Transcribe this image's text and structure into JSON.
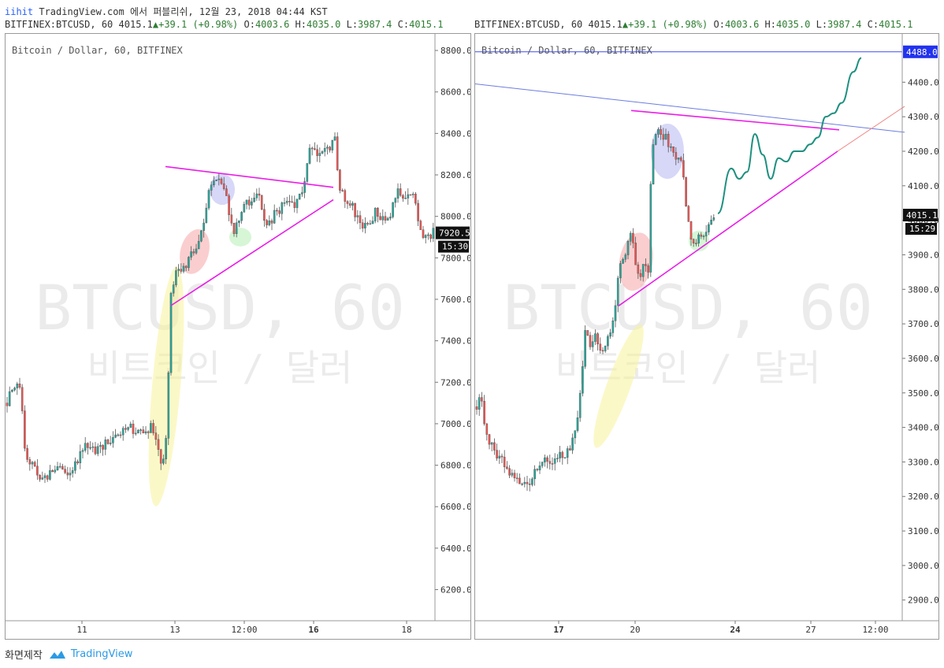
{
  "header": {
    "user": "iihit",
    "publish_text": "TradingView.com 에서 퍼블리쉬, 12월 23, 2018 04:44 KST"
  },
  "charts": [
    {
      "ohlc": {
        "symbol": "BITFINEX:BTCUSD, 60",
        "last": "4015.1",
        "change": "+39.1 (+0.98%)",
        "o_label": "O:",
        "o": "4003.6",
        "h_label": "H:",
        "h": "4035.0",
        "l_label": "L:",
        "l": "3987.4",
        "c_label": "C:",
        "c": "4015.1"
      },
      "title": "Bitcoin / Dollar, 60, BITFINEX",
      "watermark": "BTCUSD, 60",
      "watermark_sub": "비트코인 / 달러",
      "price_label": "7920.5",
      "time_label": "15:30",
      "hline_label": ""
    },
    {
      "ohlc": {
        "symbol": "BITFINEX:BTCUSD, 60",
        "last": "4015.1",
        "change": "+39.1 (+0.98%)",
        "o_label": "O:",
        "o": "4003.6",
        "h_label": "H:",
        "h": "4035.0",
        "l_label": "L:",
        "l": "3987.4",
        "c_label": "C:",
        "c": "4015.1"
      },
      "title": "Bitcoin / Dollar, 60, BITFINEX",
      "watermark": "BTCUSD, 60",
      "watermark_sub": "비트코인 / 달러",
      "price_label": "4015.1",
      "time_label": "15:29",
      "hline_label": "4488.0"
    }
  ],
  "footer": {
    "capture_label": "화면제작",
    "brand": "TradingView"
  },
  "colors": {
    "up": "#26a69a",
    "down": "#ef5350",
    "magenta": "#e91ee6",
    "blue_line": "#6c7ce0",
    "hline": "#3d4ff0",
    "projection": "#1e9080"
  },
  "chart_data": [
    {
      "type": "candlestick",
      "y_range": [
        6050,
        8880
      ],
      "y_ticks": [
        "8800.0",
        "8600.0",
        "8400.0",
        "8200.0",
        "8000.0",
        "7800.0",
        "7600.0",
        "7400.0",
        "7200.0",
        "7000.0",
        "6800.0",
        "6600.0",
        "6400.0",
        "6200.0"
      ],
      "x_ticks": [
        "11",
        "13",
        "12:00",
        "16",
        "18"
      ],
      "x_ticks_bold": [
        "16"
      ],
      "series_anchors": [
        [
          0,
          7100
        ],
        [
          5,
          7130
        ],
        [
          10,
          7160
        ],
        [
          14,
          7180
        ],
        [
          17,
          7180
        ],
        [
          20,
          7150
        ],
        [
          25,
          6850
        ],
        [
          35,
          6800
        ],
        [
          45,
          6720
        ],
        [
          55,
          6760
        ],
        [
          65,
          6800
        ],
        [
          75,
          6750
        ],
        [
          85,
          6790
        ],
        [
          95,
          6850
        ],
        [
          105,
          6900
        ],
        [
          115,
          6870
        ],
        [
          125,
          6900
        ],
        [
          135,
          6920
        ],
        [
          145,
          6950
        ],
        [
          155,
          6990
        ],
        [
          165,
          6960
        ],
        [
          175,
          6960
        ],
        [
          185,
          6990
        ],
        [
          192,
          6880
        ],
        [
          198,
          6800
        ],
        [
          204,
          6920
        ],
        [
          210,
          7650
        ],
        [
          220,
          7750
        ],
        [
          230,
          7780
        ],
        [
          240,
          7850
        ],
        [
          250,
          7920
        ],
        [
          258,
          8120
        ],
        [
          265,
          8150
        ],
        [
          272,
          8180
        ],
        [
          280,
          8100
        ],
        [
          288,
          7920
        ],
        [
          296,
          7960
        ],
        [
          304,
          8100
        ],
        [
          312,
          8050
        ],
        [
          320,
          8120
        ],
        [
          330,
          7960
        ],
        [
          340,
          8000
        ],
        [
          350,
          8050
        ],
        [
          360,
          8080
        ],
        [
          370,
          8060
        ],
        [
          378,
          8130
        ],
        [
          386,
          8320
        ],
        [
          394,
          8300
        ],
        [
          402,
          8330
        ],
        [
          410,
          8320
        ],
        [
          418,
          8360
        ],
        [
          424,
          8130
        ],
        [
          430,
          8080
        ],
        [
          440,
          8050
        ],
        [
          450,
          7950
        ],
        [
          460,
          7970
        ],
        [
          470,
          8020
        ],
        [
          480,
          7970
        ],
        [
          490,
          8030
        ],
        [
          496,
          8130
        ],
        [
          504,
          8100
        ],
        [
          512,
          8110
        ],
        [
          520,
          8070
        ],
        [
          526,
          7920
        ],
        [
          534,
          7890
        ],
        [
          545,
          7930
        ]
      ],
      "drawings": {
        "upper_trendline": [
          [
            203,
            8240
          ],
          [
            416,
            8140
          ]
        ],
        "lower_trendline": [
          [
            210,
            7570
          ],
          [
            416,
            8080
          ]
        ],
        "ellipses": [
          {
            "cx": 204,
            "cy": 7180,
            "rx": 18,
            "ry": 580,
            "rot": 5,
            "color": "#f8f29a"
          },
          {
            "cx": 240,
            "cy": 7830,
            "rx": 18,
            "ry": 110,
            "rot": 15,
            "color": "#f5a6a6"
          },
          {
            "cx": 275,
            "cy": 8130,
            "rx": 16,
            "ry": 75,
            "rot": 0,
            "color": "#b6b6f2"
          },
          {
            "cx": 298,
            "cy": 7900,
            "rx": 14,
            "ry": 45,
            "rot": 0,
            "color": "#b5efb5"
          }
        ]
      }
    },
    {
      "type": "candlestick",
      "y_range": [
        2840,
        4540
      ],
      "y_ticks": [
        "4400.0",
        "4300.0",
        "4200.0",
        "4100.0",
        "4000.0",
        "3900.0",
        "3800.0",
        "3700.0",
        "3600.0",
        "3500.0",
        "3400.0",
        "3300.0",
        "3200.0",
        "3100.0",
        "3000.0",
        "2900.0"
      ],
      "x_ticks": [
        "17",
        "20",
        "24",
        "27",
        "12:00"
      ],
      "x_ticks_bold": [
        "17",
        "24"
      ],
      "series_anchors": [
        [
          0,
          3460
        ],
        [
          8,
          3490
        ],
        [
          14,
          3380
        ],
        [
          22,
          3340
        ],
        [
          30,
          3320
        ],
        [
          40,
          3280
        ],
        [
          50,
          3250
        ],
        [
          60,
          3230
        ],
        [
          70,
          3250
        ],
        [
          80,
          3290
        ],
        [
          90,
          3320
        ],
        [
          100,
          3300
        ],
        [
          108,
          3320
        ],
        [
          116,
          3330
        ],
        [
          124,
          3360
        ],
        [
          132,
          3460
        ],
        [
          140,
          3680
        ],
        [
          146,
          3640
        ],
        [
          152,
          3660
        ],
        [
          160,
          3620
        ],
        [
          168,
          3660
        ],
        [
          176,
          3720
        ],
        [
          182,
          3860
        ],
        [
          190,
          3900
        ],
        [
          198,
          3960
        ],
        [
          206,
          3840
        ],
        [
          214,
          3860
        ],
        [
          220,
          3850
        ],
        [
          224,
          4200
        ],
        [
          230,
          4260
        ],
        [
          236,
          4240
        ],
        [
          242,
          4250
        ],
        [
          248,
          4200
        ],
        [
          254,
          4170
        ],
        [
          260,
          4200
        ],
        [
          266,
          4080
        ],
        [
          272,
          3980
        ],
        [
          278,
          3920
        ],
        [
          284,
          3960
        ],
        [
          290,
          3950
        ],
        [
          296,
          3980
        ],
        [
          303,
          4010
        ]
      ],
      "hline": 4488,
      "drawings": {
        "magenta_top": [
          [
            198,
            4318
          ],
          [
            462,
            4262
          ]
        ],
        "magenta_bottom": [
          [
            182,
            3752
          ],
          [
            460,
            4200
          ]
        ],
        "blue_diag": [
          [
            0,
            4395
          ],
          [
            545,
            4255
          ]
        ],
        "red_ext": [
          [
            460,
            4200
          ],
          [
            545,
            4330
          ]
        ],
        "projection": [
          [
            308,
            4020
          ],
          [
            325,
            4150
          ],
          [
            335,
            4120
          ],
          [
            345,
            4140
          ],
          [
            355,
            4250
          ],
          [
            365,
            4190
          ],
          [
            375,
            4120
          ],
          [
            385,
            4180
          ],
          [
            395,
            4170
          ],
          [
            405,
            4200
          ],
          [
            415,
            4200
          ],
          [
            425,
            4220
          ],
          [
            435,
            4240
          ],
          [
            445,
            4300
          ],
          [
            455,
            4310
          ],
          [
            465,
            4340
          ],
          [
            480,
            4430
          ],
          [
            490,
            4470
          ]
        ],
        "ellipses": [
          {
            "cx": 182,
            "cy": 3520,
            "rx": 15,
            "ry": 190,
            "rot": 20,
            "color": "#f8f29a"
          },
          {
            "cx": 204,
            "cy": 3880,
            "rx": 21,
            "ry": 85,
            "rot": 10,
            "color": "#f5a6a6"
          },
          {
            "cx": 244,
            "cy": 4200,
            "rx": 21,
            "ry": 80,
            "rot": 0,
            "color": "#b6b6f2"
          },
          {
            "cx": 284,
            "cy": 3940,
            "rx": 13,
            "ry": 30,
            "rot": 0,
            "color": "#b5efb5"
          }
        ]
      }
    }
  ]
}
